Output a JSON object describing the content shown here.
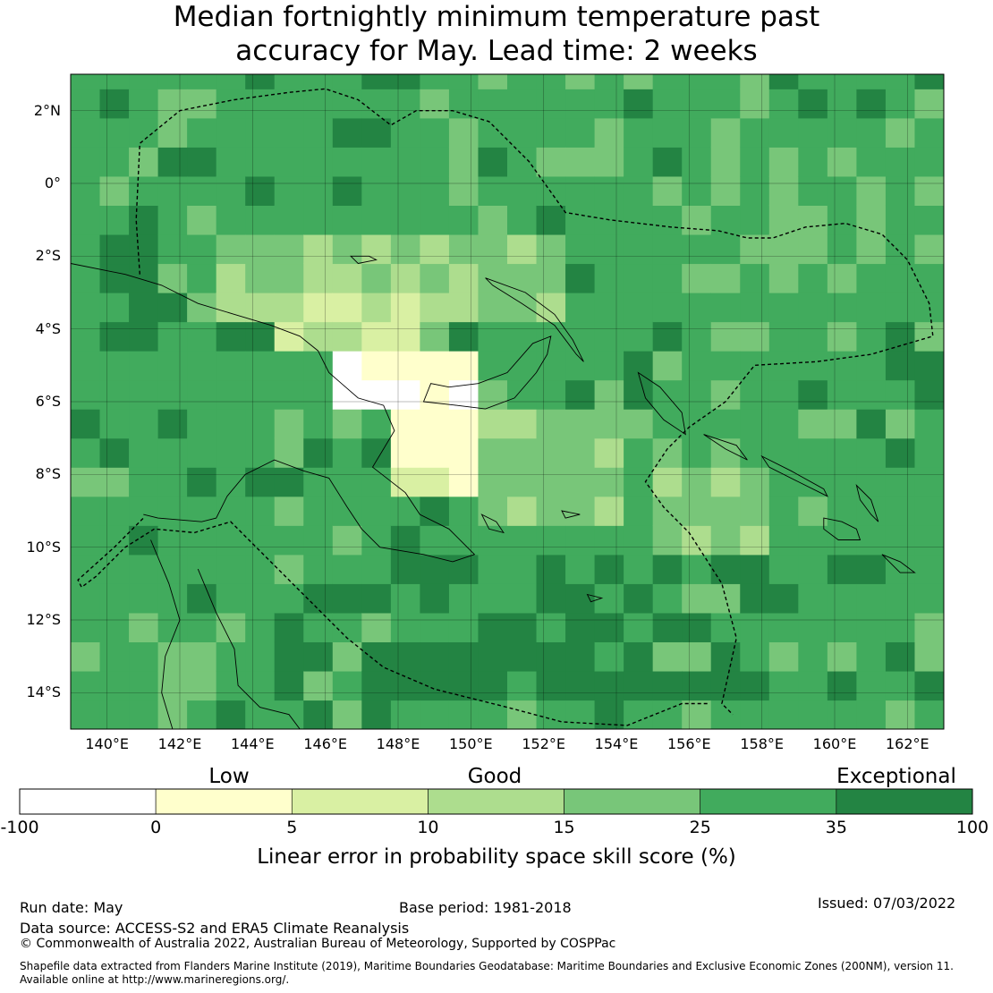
{
  "title": {
    "line1": "Median fortnightly minimum temperature past",
    "line2": "accuracy for May. Lead time: 2 weeks"
  },
  "map": {
    "lon_range": [
      139,
      163
    ],
    "lat_range": [
      -15,
      3
    ],
    "lat_ticks": [
      "2°N",
      "0°",
      "2°S",
      "4°S",
      "6°S",
      "8°S",
      "10°S",
      "12°S",
      "14°S"
    ],
    "lon_ticks": [
      "140°E",
      "142°E",
      "144°E",
      "146°E",
      "148°E",
      "150°E",
      "152°E",
      "154°E",
      "156°E",
      "158°E",
      "160°E",
      "162°E"
    ]
  },
  "colorbar": {
    "categories": [
      "Low",
      "Good",
      "Exceptional"
    ],
    "ticks": [
      "-100",
      "0",
      "5",
      "10",
      "15",
      "25",
      "35",
      "100"
    ],
    "colors": [
      "#ffffff",
      "#ffffcc",
      "#d9f0a3",
      "#addd8e",
      "#78c679",
      "#41ab5d",
      "#238443"
    ],
    "label": "Linear error in probability space skill score (%)"
  },
  "footer": {
    "run_date": "Run date: May",
    "base_period": "Base period: 1981-2018",
    "issued": "Issued: 07/03/2022",
    "data_source": "Data source: ACCESS-S2 and ERA5 Climate Reanalysis",
    "copyright": "© Commonwealth of Australia 2022, Australian Bureau of Meteorology, Supported by COSPPac",
    "shapefile_line1": "Shapefile data extracted from Flanders Marine Institute (2019), Maritime Boundaries Geodatabase: Maritime Boundaries and Exclusive Economic Zones (200NM), version 11.",
    "shapefile_line2": "Available online at http://www.marineregions.org/."
  }
}
